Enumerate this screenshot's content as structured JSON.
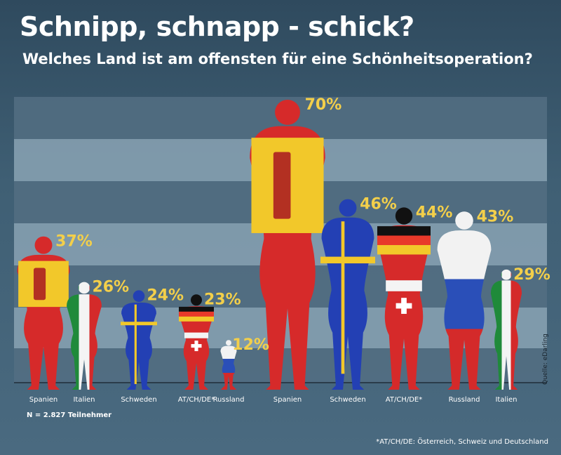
{
  "title": "Schnipp, schnapp - schick?",
  "subtitle": "Welches Land ist am offensten für eine Schönheitsoperation?",
  "note": "N = 2.827 Teilnehmer",
  "footnote": "*AT/CH/DE: Österreich, Schweiz und Deutschland",
  "source": "Quelle: eDarling",
  "colors": {
    "value_label": "#f3cf4a",
    "band_light": "#8aa3b4",
    "band_dark": "#546f82"
  },
  "chart_data": {
    "type": "bar",
    "ylim": [
      0,
      80
    ],
    "groups": [
      {
        "name": "",
        "bars": [
          {
            "category": "Spanien",
            "value": 37,
            "flag": "spain",
            "label": "37%"
          },
          {
            "category": "Italien",
            "value": 26,
            "flag": "italy",
            "label": "26%"
          },
          {
            "category": "Schweden",
            "value": 24,
            "flag": "sweden",
            "label": "24%"
          },
          {
            "category": "AT/CH/DE*",
            "value": 23,
            "flag": "atchde",
            "label": "23%"
          },
          {
            "category": "Russland",
            "value": 12,
            "flag": "russia",
            "label": "12%"
          }
        ]
      },
      {
        "name": "",
        "bars": [
          {
            "category": "Spanien",
            "value": 70,
            "flag": "spain",
            "label": "70%"
          },
          {
            "category": "Schweden",
            "value": 46,
            "flag": "sweden",
            "label": "46%"
          },
          {
            "category": "AT/CH/DE*",
            "value": 44,
            "flag": "atchde",
            "label": "44%"
          },
          {
            "category": "Russland",
            "value": 43,
            "flag": "russia",
            "label": "43%"
          },
          {
            "category": "Italien",
            "value": 29,
            "flag": "italy",
            "label": "29%"
          }
        ]
      }
    ]
  }
}
